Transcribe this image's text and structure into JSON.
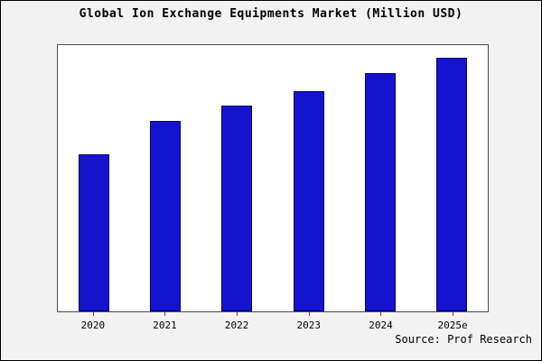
{
  "chart_data": {
    "type": "bar",
    "title": "Global Ion Exchange Equipments Market (Million USD)",
    "categories": [
      "2020",
      "2021",
      "2022",
      "2023",
      "2024",
      "2025e"
    ],
    "values": [
      62,
      75,
      81,
      87,
      94,
      100
    ],
    "xlabel": "",
    "ylabel": "",
    "ylim": [
      0,
      105
    ],
    "grid": false,
    "legend": "none",
    "bar_color": "#1414cf",
    "bar_edge_color": "#00006e"
  },
  "source": {
    "text": "Source: Prof Research"
  }
}
